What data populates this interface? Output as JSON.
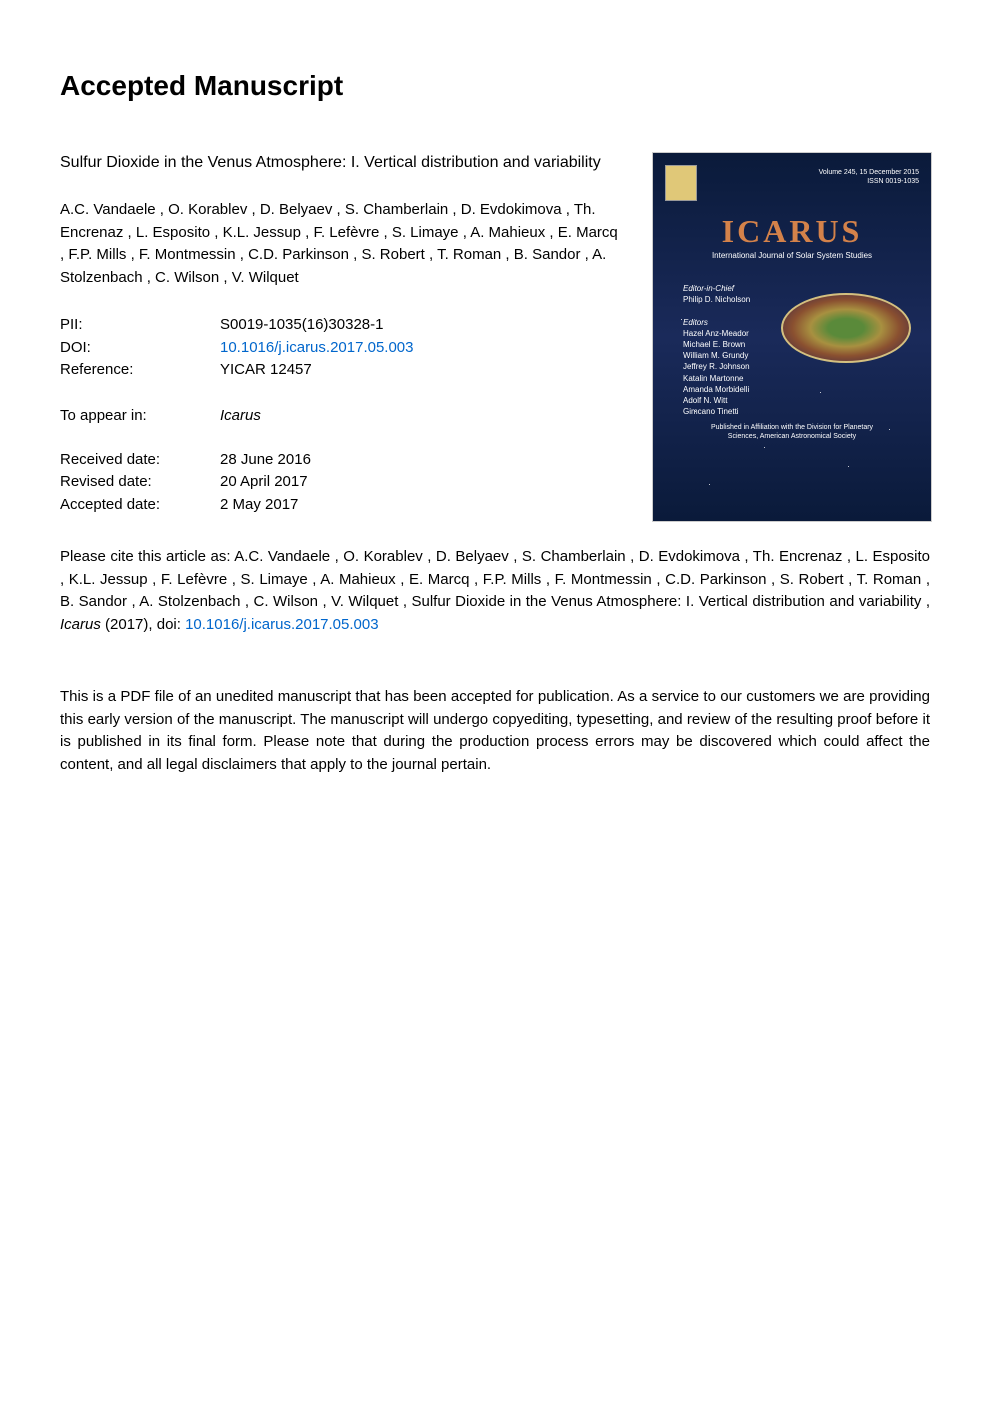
{
  "page": {
    "heading": "Accepted Manuscript"
  },
  "article": {
    "title": "Sulfur Dioxide in the Venus Atmosphere: I. Vertical distribution and variability",
    "authors": "A.C. Vandaele ,  O. Korablev ,  D. Belyaev ,  S. Chamberlain ,  D. Evdokimova ,  Th. Encrenaz ,  L. Esposito ,  K.L. Jessup ,  F. Lefèvre ,  S. Limaye ,  A. Mahieux ,  E. Marcq ,  F.P. Mills ,  F. Montmessin ,  C.D. Parkinson ,  S. Robert ,  T. Roman ,  B. Sandor ,  A. Stolzenbach ,  C. Wilson ,  V. Wilquet"
  },
  "metadata": {
    "pii_label": "PII:",
    "pii_value": "S0019-1035(16)30328-1",
    "doi_label": "DOI:",
    "doi_value": "10.1016/j.icarus.2017.05.003",
    "reference_label": "Reference:",
    "reference_value": "YICAR 12457",
    "appear_label": "To appear in:",
    "appear_value": "Icarus",
    "received_label": "Received date:",
    "received_value": "28 June 2016",
    "revised_label": "Revised date:",
    "revised_value": "20 April 2017",
    "accepted_label": "Accepted date:",
    "accepted_value": "2 May 2017"
  },
  "citation": {
    "prefix": "Please cite this article as: ",
    "authors": "A.C. Vandaele ,  O. Korablev ,  D. Belyaev ,  S. Chamberlain ,  D. Evdokimova ,  Th. Encrenaz ,  L. Esposito ,  K.L. Jessup ,  F. Lefèvre ,  S. Limaye ,  A. Mahieux ,  E. Marcq ,  F.P. Mills ,  F. Montmessin ,  C.D. Parkinson ,  S. Robert ,  T. Roman ,  B. Sandor ,  A. Stolzenbach ,  C. Wilson ,  V. Wilquet , ",
    "title": "Sulfur Dioxide in the Venus Atmosphere: I. Vertical distribution and variability , ",
    "journal": "Icarus",
    "year": " (2017), doi: ",
    "doi": "10.1016/j.icarus.2017.05.003"
  },
  "disclaimer": {
    "text": "This is a PDF file of an unedited manuscript that has been accepted for publication. As a service to our customers we are providing this early version of the manuscript. The manuscript will undergo copyediting, typesetting, and review of the resulting proof before it is published in its final form. Please note that during the production process errors may be discovered which could affect the content, and all legal disclaimers that apply to the journal pertain."
  },
  "cover": {
    "title": "ICARUS",
    "subtitle": "International Journal of Solar System Studies",
    "top_right": "Volume 245, 15 December 2015\nISSN 0019-1035",
    "editors_heading": "Editor-in-Chief",
    "editor_chief": "Philip D. Nicholson",
    "editors_label": "Editors",
    "editors_list": "Hazel Anz-Meador\nMichael E. Brown\nWilliam M. Grundy\nJeffrey R. Johnson\nKatalin Martonne\nAmanda Morbidelli\nAdolf N. Witt\nGimcano Tinetti",
    "footer": "Published in Affiliation with the Division for Planetary\nSciences, American Astronomical Society"
  }
}
